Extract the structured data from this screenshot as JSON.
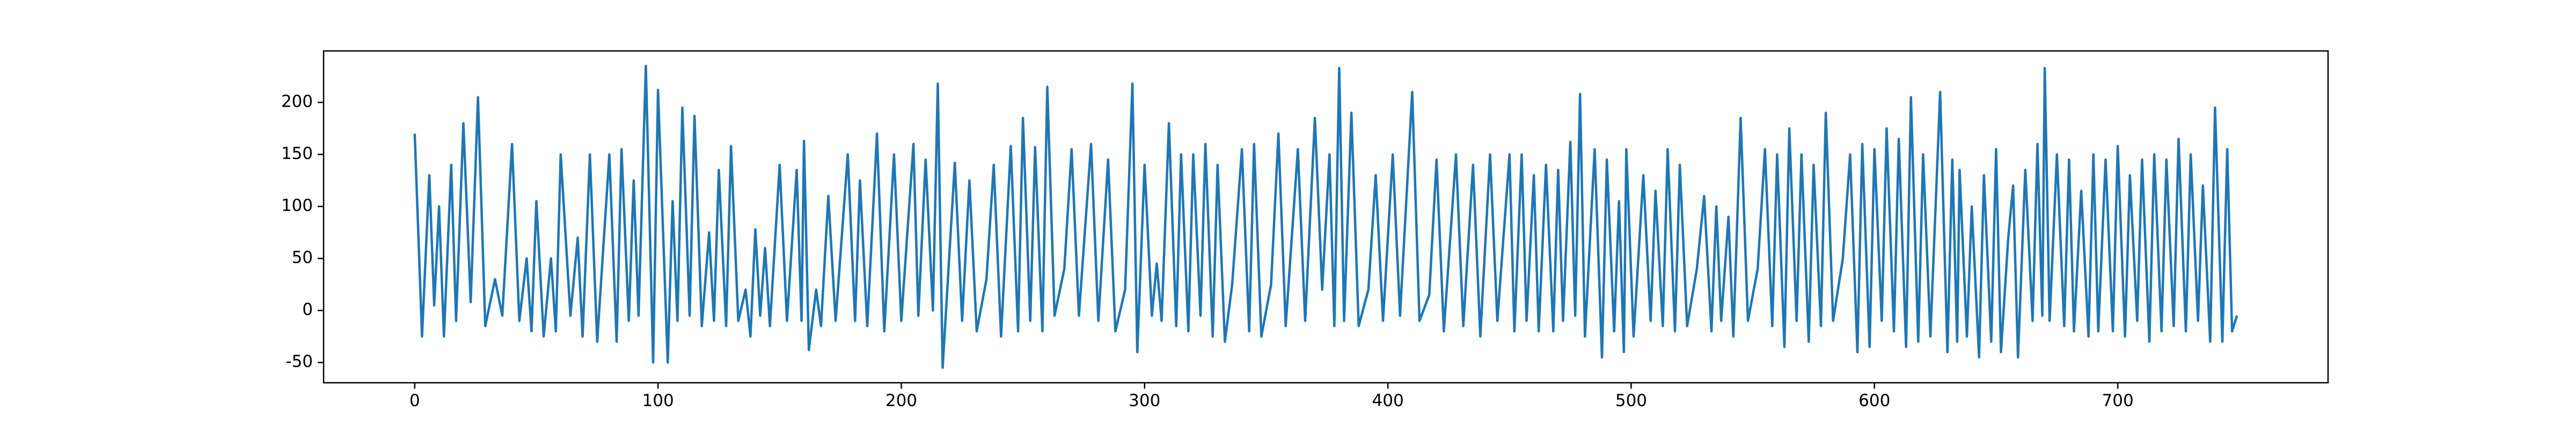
{
  "chart_data": {
    "type": "line",
    "x": [
      0,
      3,
      6,
      8,
      10,
      12,
      15,
      17,
      20,
      23,
      26,
      29,
      33,
      36,
      40,
      43,
      46,
      48,
      50,
      53,
      56,
      58,
      60,
      64,
      67,
      69,
      72,
      75,
      80,
      83,
      85,
      88,
      90,
      92,
      95,
      98,
      100,
      104,
      106,
      108,
      110,
      113,
      115,
      118,
      121,
      123,
      125,
      128,
      130,
      133,
      136,
      138,
      140,
      142,
      144,
      146,
      150,
      153,
      157,
      159,
      160,
      162,
      165,
      167,
      170,
      173,
      178,
      181,
      183,
      186,
      190,
      193,
      197,
      200,
      205,
      207,
      210,
      213,
      215,
      217,
      222,
      225,
      228,
      231,
      235,
      238,
      241,
      245,
      248,
      250,
      253,
      255,
      258,
      260,
      263,
      267,
      270,
      273,
      278,
      281,
      285,
      288,
      292,
      295,
      297,
      300,
      303,
      305,
      307,
      310,
      313,
      315,
      318,
      320,
      323,
      325,
      328,
      330,
      333,
      336,
      340,
      343,
      345,
      348,
      352,
      355,
      358,
      363,
      366,
      370,
      373,
      376,
      378,
      380,
      382,
      385,
      388,
      392,
      395,
      398,
      402,
      405,
      410,
      413,
      417,
      420,
      423,
      428,
      431,
      435,
      438,
      442,
      445,
      450,
      452,
      455,
      457,
      460,
      462,
      465,
      468,
      470,
      472,
      475,
      477,
      479,
      481,
      485,
      488,
      490,
      493,
      495,
      497,
      498,
      501,
      505,
      508,
      510,
      513,
      515,
      518,
      520,
      523,
      527,
      530,
      533,
      535,
      537,
      540,
      542,
      545,
      548,
      552,
      555,
      558,
      560,
      563,
      565,
      568,
      570,
      573,
      575,
      578,
      580,
      583,
      587,
      590,
      593,
      595,
      598,
      600,
      603,
      605,
      608,
      610,
      613,
      615,
      618,
      620,
      623,
      627,
      630,
      632,
      634,
      635,
      638,
      640,
      643,
      645,
      648,
      650,
      652,
      655,
      657,
      659,
      662,
      665,
      667,
      669,
      670,
      672,
      675,
      678,
      680,
      682,
      685,
      688,
      690,
      692,
      695,
      698,
      700,
      703,
      705,
      708,
      710,
      713,
      715,
      718,
      720,
      723,
      725,
      728,
      730,
      733,
      735,
      738,
      740,
      743,
      745,
      747,
      749
    ],
    "series": [
      {
        "color": "#1f77b4",
        "values": [
          170,
          -25,
          130,
          5,
          100,
          -25,
          140,
          -10,
          180,
          8,
          205,
          -15,
          30,
          -5,
          160,
          -10,
          50,
          -20,
          105,
          -25,
          50,
          -20,
          150,
          -5,
          70,
          -25,
          150,
          -30,
          150,
          -30,
          155,
          -10,
          125,
          -5,
          235,
          -50,
          212,
          -50,
          105,
          -10,
          195,
          -5,
          187,
          -15,
          75,
          -10,
          135,
          -15,
          158,
          -10,
          20,
          -25,
          78,
          -5,
          60,
          -15,
          140,
          -10,
          135,
          -10,
          163,
          -38,
          20,
          -15,
          110,
          -10,
          150,
          -10,
          125,
          -15,
          170,
          -20,
          150,
          -10,
          160,
          -5,
          145,
          0,
          218,
          -55,
          142,
          -10,
          125,
          -20,
          30,
          140,
          -25,
          158,
          -20,
          185,
          -10,
          157,
          -20,
          215,
          -5,
          40,
          155,
          -5,
          160,
          -10,
          145,
          -20,
          20,
          218,
          -40,
          140,
          -5,
          45,
          -10,
          180,
          -15,
          150,
          -20,
          150,
          -5,
          160,
          -25,
          140,
          -30,
          25,
          155,
          -20,
          160,
          -25,
          25,
          170,
          -15,
          155,
          -10,
          185,
          20,
          150,
          -15,
          233,
          -10,
          190,
          -15,
          20,
          130,
          -10,
          150,
          -5,
          210,
          -10,
          15,
          145,
          -20,
          150,
          -15,
          140,
          -25,
          150,
          -10,
          150,
          -20,
          150,
          -10,
          130,
          -20,
          140,
          -20,
          135,
          -10,
          162,
          -5,
          208,
          -25,
          155,
          -45,
          145,
          -20,
          105,
          -40,
          155,
          -25,
          130,
          -10,
          115,
          -15,
          155,
          -20,
          140,
          -15,
          40,
          110,
          -20,
          100,
          -10,
          90,
          -25,
          185,
          -10,
          40,
          155,
          -15,
          150,
          -35,
          175,
          -10,
          150,
          -30,
          140,
          -15,
          190,
          -10,
          50,
          150,
          -40,
          160,
          -35,
          155,
          -10,
          175,
          -20,
          165,
          -35,
          205,
          -30,
          150,
          -25,
          210,
          -40,
          145,
          -30,
          135,
          -25,
          100,
          -45,
          130,
          -30,
          155,
          -40,
          70,
          120,
          -45,
          135,
          -10,
          160,
          -5,
          233,
          -10,
          150,
          -15,
          145,
          -20,
          115,
          -25,
          150,
          -20,
          145,
          -20,
          158,
          -25,
          130,
          -10,
          145,
          -30,
          150,
          -20,
          145,
          -15,
          165,
          -20,
          150,
          -10,
          120,
          -30,
          195,
          -30,
          155,
          -20,
          -5
        ]
      }
    ],
    "xlim": [
      -37.45,
      786.45
    ],
    "ylim": [
      -69.5,
      249.5
    ],
    "xticks": [
      0,
      100,
      200,
      300,
      400,
      500,
      600,
      700
    ],
    "yticks": [
      -50,
      0,
      50,
      100,
      150,
      200
    ]
  }
}
